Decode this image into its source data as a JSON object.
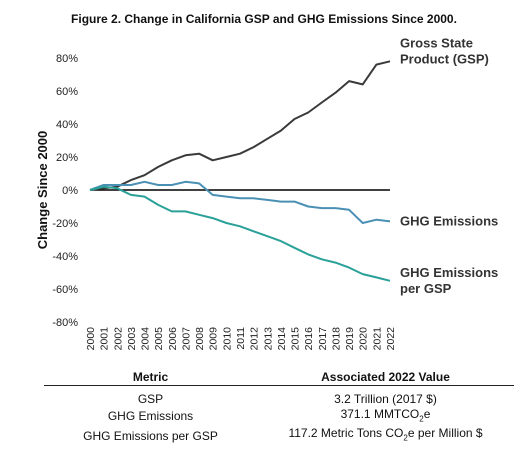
{
  "title": "Figure 2. Change in California GSP and GHG Emissions Since 2000.",
  "chart_data": {
    "type": "line",
    "title": "Figure 2. Change in California GSP and GHG Emissions Since 2000.",
    "xlabel": "",
    "ylabel": "Change Since 2000",
    "x": [
      "2000",
      "2001",
      "2002",
      "2003",
      "2004",
      "2005",
      "2006",
      "2007",
      "2008",
      "2009",
      "2010",
      "2011",
      "2012",
      "2013",
      "2014",
      "2015",
      "2016",
      "2017",
      "2018",
      "2019",
      "2020",
      "2021",
      "2022"
    ],
    "ylim": [
      -80,
      80
    ],
    "yticks": [
      -80,
      -60,
      -40,
      -20,
      0,
      20,
      40,
      60,
      80
    ],
    "ytick_labels": [
      "-80%",
      "-60%",
      "-40%",
      "-20%",
      "0%",
      "20%",
      "40%",
      "60%",
      "80%"
    ],
    "grid": false,
    "series": [
      {
        "name": "Gross State Product (GSP)",
        "label_lines": [
          "Gross State",
          "Product (GSP)"
        ],
        "color": "#3a3a3a",
        "values": [
          0,
          1,
          2,
          6,
          9,
          14,
          18,
          21,
          22,
          18,
          20,
          22,
          26,
          31,
          36,
          43,
          47,
          53,
          59,
          66,
          64,
          76,
          78
        ]
      },
      {
        "name": "GHG Emissions",
        "label_lines": [
          "GHG Emissions"
        ],
        "color": "#4a90b5",
        "values": [
          0,
          3,
          3,
          3,
          5,
          3,
          3,
          5,
          4,
          -3,
          -4,
          -5,
          -5,
          -6,
          -7,
          -7,
          -10,
          -11,
          -11,
          -12,
          -20,
          -18,
          -19
        ]
      },
      {
        "name": "GHG Emissions per GSP",
        "label_lines": [
          "GHG Emissions",
          "per GSP"
        ],
        "color": "#2aa198",
        "values": [
          0,
          2,
          1,
          -3,
          -4,
          -9,
          -13,
          -13,
          -15,
          -17,
          -20,
          -22,
          -25,
          -28,
          -31,
          -35,
          -39,
          -42,
          -44,
          -47,
          -51,
          -53,
          -55
        ]
      }
    ]
  },
  "table": {
    "headers": [
      "Metric",
      "Associated 2022 Value"
    ],
    "rows": [
      {
        "metric": "GSP",
        "value": "3.2 Trillion (2017 $)"
      },
      {
        "metric": "GHG Emissions",
        "value_pre": "371.1 MMTCO",
        "value_sub": "2",
        "value_post": "e"
      },
      {
        "metric": "GHG Emissions per GSP",
        "value_pre": "117.2 Metric Tons CO",
        "value_sub": "2",
        "value_post": "e per Million $"
      }
    ]
  }
}
